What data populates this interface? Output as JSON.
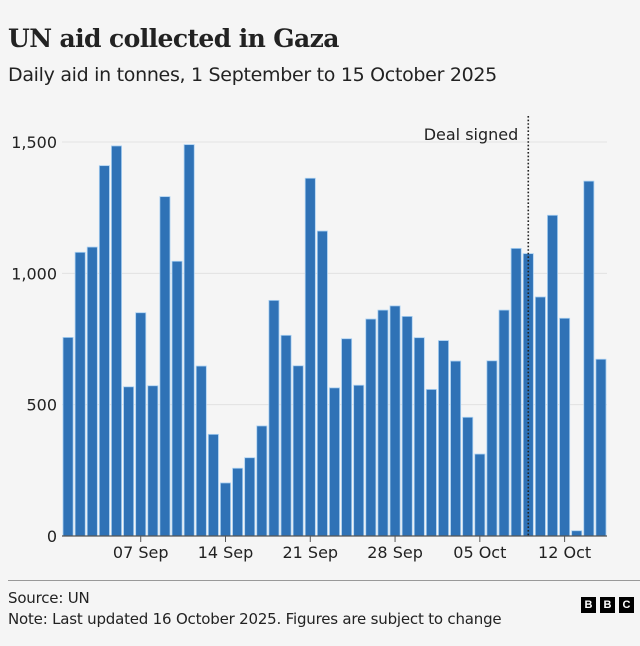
{
  "header": {
    "title": "UN aid collected in Gaza",
    "subtitle": "Daily aid in tonnes, 1 September to 15 October 2025"
  },
  "footer": {
    "source": "Source: UN",
    "note": "Note: Last updated 16 October 2025. Figures are subject to change",
    "logo_letters": [
      "B",
      "B",
      "C"
    ]
  },
  "colors": {
    "bar": "#2f72b6",
    "bar_outline": "#a9d0f2",
    "background": "#f5f5f5",
    "grid": "#e2e2e2",
    "text": "#222222"
  },
  "chart_data": {
    "type": "bar",
    "title": "UN aid collected in Gaza",
    "subtitle": "Daily aid in tonnes, 1 September to 15 October 2025",
    "xlabel": "",
    "ylabel": "",
    "ylim": [
      0,
      1500
    ],
    "yticks": [
      0,
      500,
      1000,
      1500
    ],
    "ytick_labels": [
      "0",
      "500",
      "1,000",
      "1,500"
    ],
    "grid": true,
    "xtick_labels": [
      {
        "day_index": 6,
        "label": "07 Sep"
      },
      {
        "day_index": 13,
        "label": "14 Sep"
      },
      {
        "day_index": 20,
        "label": "21 Sep"
      },
      {
        "day_index": 27,
        "label": "28 Sep"
      },
      {
        "day_index": 34,
        "label": "05 Oct"
      },
      {
        "day_index": 41,
        "label": "12 Oct"
      }
    ],
    "categories": [
      "01 Sep",
      "02 Sep",
      "03 Sep",
      "04 Sep",
      "05 Sep",
      "06 Sep",
      "07 Sep",
      "08 Sep",
      "09 Sep",
      "10 Sep",
      "11 Sep",
      "12 Sep",
      "13 Sep",
      "14 Sep",
      "15 Sep",
      "16 Sep",
      "17 Sep",
      "18 Sep",
      "19 Sep",
      "20 Sep",
      "21 Sep",
      "22 Sep",
      "23 Sep",
      "24 Sep",
      "25 Sep",
      "26 Sep",
      "27 Sep",
      "28 Sep",
      "29 Sep",
      "30 Sep",
      "01 Oct",
      "02 Oct",
      "03 Oct",
      "04 Oct",
      "05 Oct",
      "06 Oct",
      "07 Oct",
      "08 Oct",
      "09 Oct",
      "10 Oct",
      "11 Oct",
      "12 Oct",
      "13 Oct",
      "14 Oct",
      "15 Oct"
    ],
    "values": [
      756,
      1080,
      1100,
      1410,
      1485,
      568,
      850,
      572,
      1292,
      1046,
      1490,
      647,
      387,
      202,
      258,
      298,
      419,
      897,
      764,
      648,
      1362,
      1161,
      564,
      751,
      574,
      826,
      860,
      876,
      836,
      755,
      558,
      744,
      666,
      452,
      312,
      667,
      860,
      1095,
      1075,
      910,
      1221,
      829,
      20,
      1351,
      673
    ],
    "annotations": [
      {
        "type": "vertical-dotted-line",
        "at_category": "09 Oct",
        "label": "Deal signed"
      }
    ]
  }
}
